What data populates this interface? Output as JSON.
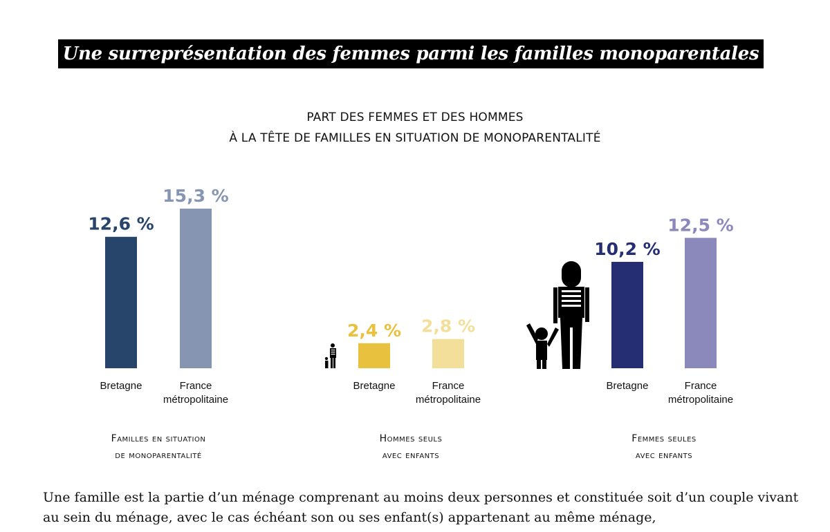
{
  "title": "Une surreprésentation des femmes parmi les familles monoparentales",
  "chart_data": {
    "type": "bar",
    "title_lines": [
      "PART DES FEMMES ET DES HOMMES",
      "À LA TÊTE DE FAMILLES EN SITUATION DE MONOPARENTALITÉ"
    ],
    "unit": "%",
    "groups": [
      {
        "label_lines": [
          "Familles en situation",
          "de monoparentalité"
        ],
        "icon": "",
        "bars": [
          {
            "category": "Bretagne",
            "value": 12.6,
            "label": "12,6 %",
            "color": "#27456b"
          },
          {
            "category": "France métropolitaine",
            "value": 15.3,
            "label": "15,3 %",
            "color": "#8595b2"
          }
        ]
      },
      {
        "label_lines": [
          "Hommes seuls",
          "avec enfants"
        ],
        "icon": "man-with-child-icon",
        "bars": [
          {
            "category": "Bretagne",
            "value": 2.4,
            "label": "2,4 %",
            "color": "#e8c23e"
          },
          {
            "category": "France métropolitaine",
            "value": 2.8,
            "label": "2,8 %",
            "color": "#f4df9a"
          }
        ]
      },
      {
        "label_lines": [
          "Femmes seules",
          "avec enfants"
        ],
        "icon": "woman-with-child-icon",
        "bars": [
          {
            "category": "Bretagne",
            "value": 10.2,
            "label": "10,2 %",
            "color": "#252e72"
          },
          {
            "category": "France métropolitaine",
            "value": 12.5,
            "label": "12,5 %",
            "color": "#8b89bb"
          }
        ]
      }
    ],
    "category_label_lines": {
      "Bretagne": [
        "Bretagne"
      ],
      "France métropolitaine": [
        "France",
        "métropolitaine"
      ]
    },
    "axes_shown": false,
    "grid": false
  },
  "body_text": "Une famille est la partie d’un ménage comprenant au moins deux personnes et constituée soit d’un couple vivant au sein du ménage, avec le cas échéant son ou ses enfant(s) appartenant au même ménage,"
}
